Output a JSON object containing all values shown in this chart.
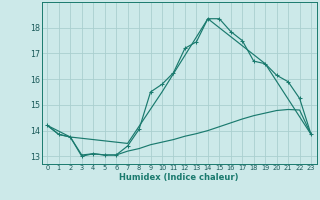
{
  "xlabel": "Humidex (Indice chaleur)",
  "xlim": [
    -0.5,
    23.5
  ],
  "ylim": [
    12.7,
    19.0
  ],
  "yticks": [
    13,
    14,
    15,
    16,
    17,
    18
  ],
  "xticks": [
    0,
    1,
    2,
    3,
    4,
    5,
    6,
    7,
    8,
    9,
    10,
    11,
    12,
    13,
    14,
    15,
    16,
    17,
    18,
    19,
    20,
    21,
    22,
    23
  ],
  "background_color": "#cce9e9",
  "line_color": "#1a7a6e",
  "grid_color": "#aacfcf",
  "curve1_x": [
    0,
    1,
    2,
    3,
    4,
    5,
    6,
    7,
    8,
    9,
    10,
    11,
    12,
    13,
    14,
    15,
    16,
    17,
    18,
    19,
    20,
    21,
    22,
    23
  ],
  "curve1_y": [
    14.2,
    13.85,
    13.75,
    13.0,
    13.1,
    13.05,
    13.05,
    13.4,
    14.05,
    15.5,
    15.8,
    16.25,
    17.2,
    17.45,
    18.35,
    18.35,
    17.85,
    17.5,
    16.7,
    16.6,
    16.15,
    15.9,
    15.25,
    13.85
  ],
  "curve2_x": [
    0,
    2,
    7,
    10,
    14,
    19,
    23
  ],
  "curve2_y": [
    14.2,
    13.75,
    13.5,
    15.5,
    18.35,
    16.6,
    13.85
  ],
  "curve3_x": [
    0,
    1,
    2,
    3,
    4,
    5,
    6,
    7,
    8,
    9,
    10,
    11,
    12,
    13,
    14,
    15,
    16,
    17,
    18,
    19,
    20,
    21,
    22,
    23
  ],
  "curve3_y": [
    14.2,
    13.85,
    13.75,
    13.05,
    13.1,
    13.05,
    13.05,
    13.2,
    13.3,
    13.45,
    13.55,
    13.65,
    13.78,
    13.88,
    14.0,
    14.15,
    14.3,
    14.45,
    14.58,
    14.68,
    14.78,
    14.82,
    14.8,
    13.85
  ]
}
